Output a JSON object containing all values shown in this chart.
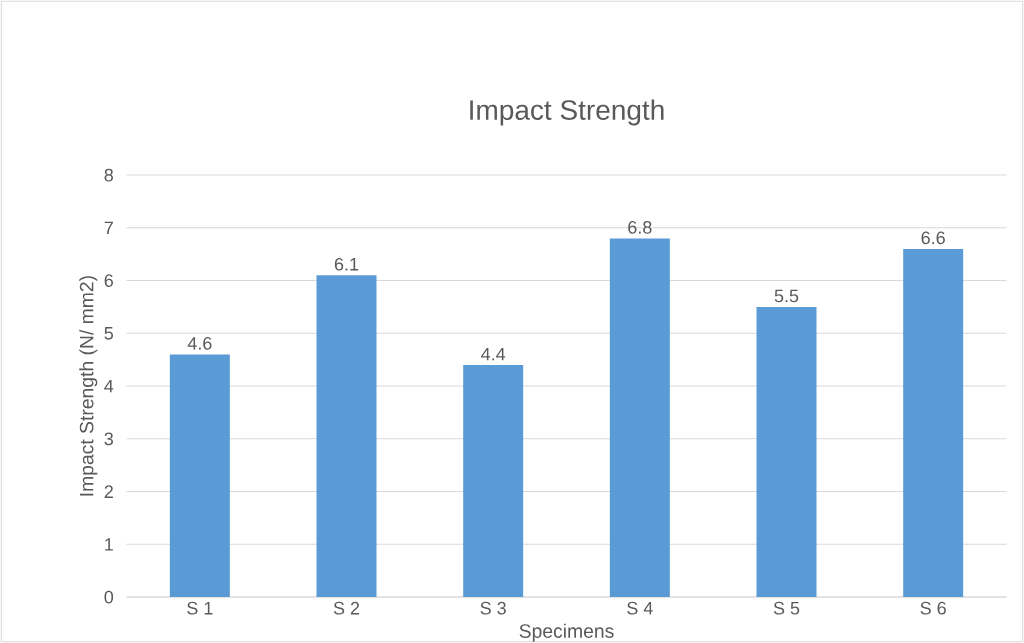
{
  "chart_data": {
    "type": "bar",
    "title": "Impact Strength",
    "xlabel": "Specimens",
    "ylabel": "Impact Strength (N/ mm2)",
    "categories": [
      "S 1",
      "S 2",
      "S 3",
      "S 4",
      "S 5",
      "S 6"
    ],
    "values": [
      4.6,
      6.1,
      4.4,
      6.8,
      5.5,
      6.6
    ],
    "color": "#5b9bd5",
    "ylim": [
      0,
      8
    ],
    "yticks": [
      0,
      1,
      2,
      3,
      4,
      5,
      6,
      7,
      8
    ],
    "grid": "y",
    "data_labels": true
  }
}
